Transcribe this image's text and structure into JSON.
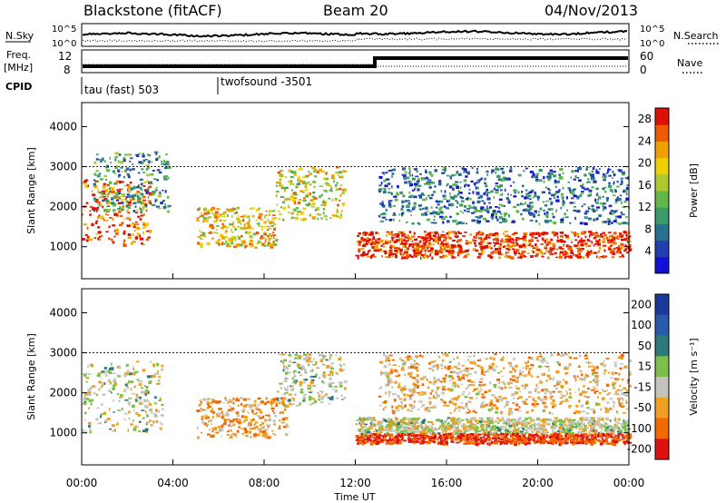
{
  "header": {
    "site": "Blackstone (fitACF)",
    "beam": "Beam 20",
    "date": "04/Nov/2013"
  },
  "top_panels": {
    "nsky_label": "N.Sky",
    "nsearch_label": "N.Search",
    "nsky_ticks": [
      "10^5",
      "10^0"
    ],
    "nsearch_ticks": [
      "10^5",
      "10^0"
    ],
    "freq_label_1": "Freq.",
    "freq_label_2": "[MHz]",
    "freq_ticks": [
      "12",
      "8"
    ],
    "nave_label": "Nave",
    "nave_ticks": [
      "60",
      "0"
    ],
    "cpid_label": "CPID",
    "cpid_segments": [
      {
        "label": "tau (fast) 503"
      },
      {
        "label": "twofsound  -3501"
      }
    ]
  },
  "chart_data": [
    {
      "type": "heatmap",
      "title": "",
      "xlabel": "Time UT",
      "ylabel": "Slant Range [km]",
      "x_ticks": [
        "00:00",
        "04:00",
        "08:00",
        "12:00",
        "16:00",
        "20:00",
        "00:00"
      ],
      "xlim_hours": [
        0,
        24
      ],
      "y_ticks": [
        "1000",
        "2000",
        "3000",
        "4000"
      ],
      "ylim": [
        200,
        4600
      ],
      "colorbar": {
        "label": "Power [dB]",
        "ticks": [
          "4",
          "8",
          "12",
          "16",
          "20",
          "24",
          "28"
        ],
        "range": [
          0,
          30
        ]
      },
      "echo_bands": [
        {
          "t0": 0.0,
          "t1": 3.0,
          "r0": 1050,
          "r1": 2700,
          "power_db": 26
        },
        {
          "t0": 0.5,
          "t1": 3.8,
          "r0": 1900,
          "r1": 3400,
          "power_db": 10
        },
        {
          "t0": 5.0,
          "t1": 8.5,
          "r0": 1000,
          "r1": 2000,
          "power_db": 20
        },
        {
          "t0": 8.5,
          "t1": 11.5,
          "r0": 1700,
          "r1": 3000,
          "power_db": 18
        },
        {
          "t0": 12.0,
          "t1": 24.0,
          "r0": 750,
          "r1": 1400,
          "power_db": 28
        },
        {
          "t0": 13.0,
          "t1": 24.0,
          "r0": 1600,
          "r1": 3000,
          "power_db": 8
        }
      ]
    },
    {
      "type": "heatmap",
      "title": "",
      "xlabel": "Time UT",
      "ylabel": "Slant Range [km]",
      "x_ticks": [
        "00:00",
        "04:00",
        "08:00",
        "12:00",
        "16:00",
        "20:00",
        "00:00"
      ],
      "xlim_hours": [
        0,
        24
      ],
      "y_ticks": [
        "1000",
        "2000",
        "3000",
        "4000"
      ],
      "ylim": [
        200,
        4600
      ],
      "colorbar": {
        "label": "Velocity [m s⁻¹]",
        "ticks": [
          "200",
          "100",
          "50",
          "15",
          "-15",
          "-50",
          "-100",
          "-200"
        ],
        "range": [
          -250,
          250
        ]
      },
      "echo_bands": [
        {
          "t0": 0.0,
          "t1": 3.5,
          "r0": 1050,
          "r1": 2800,
          "velocity": 0
        },
        {
          "t0": 5.0,
          "t1": 9.0,
          "r0": 900,
          "r1": 1900,
          "velocity": -60
        },
        {
          "t0": 8.5,
          "t1": 11.5,
          "r0": 1700,
          "r1": 3000,
          "velocity": 0
        },
        {
          "t0": 12.0,
          "t1": 24.0,
          "r0": 1000,
          "r1": 1400,
          "velocity": 0
        },
        {
          "t0": 12.0,
          "t1": 24.0,
          "r0": 750,
          "r1": 1000,
          "velocity": -150
        },
        {
          "t0": 13.0,
          "t1": 24.0,
          "r0": 1500,
          "r1": 3000,
          "velocity": -40
        }
      ]
    }
  ]
}
